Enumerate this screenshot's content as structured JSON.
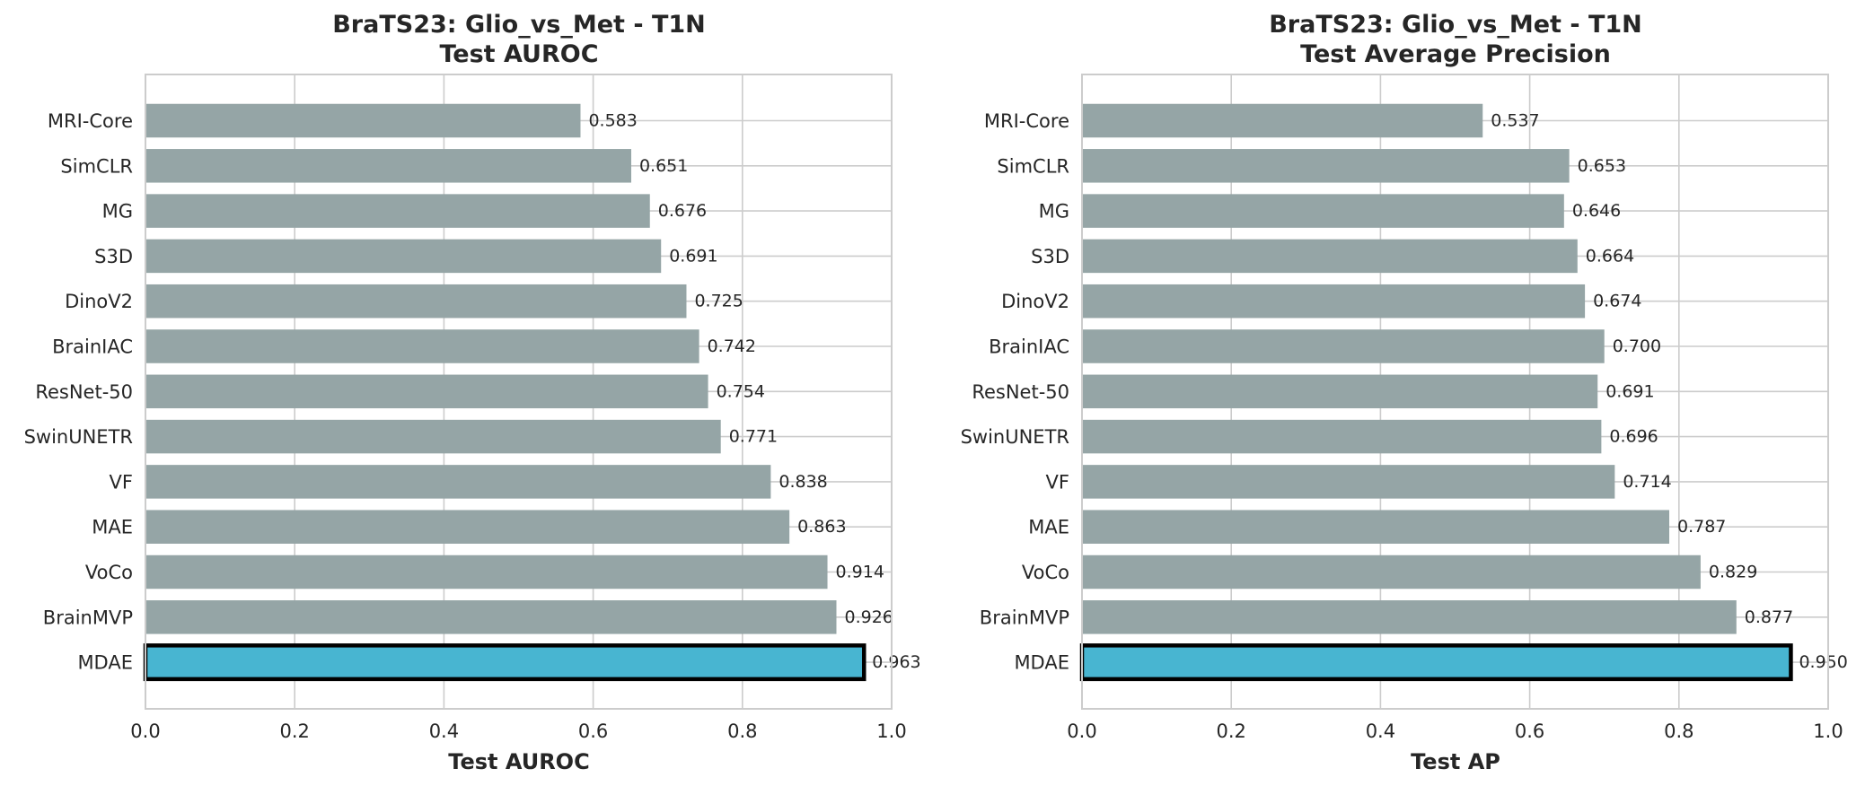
{
  "chart_data": [
    {
      "type": "bar",
      "orientation": "horizontal",
      "title": "BraTS23: Glio_vs_Met - T1N",
      "subtitle": "Test AUROC",
      "xlabel": "Test AUROC",
      "ylabel": "",
      "xlim": [
        0.0,
        1.0
      ],
      "xticks": [
        "0.0",
        "0.2",
        "0.4",
        "0.6",
        "0.8",
        "1.0"
      ],
      "grid": true,
      "categories": [
        "MRI-Core",
        "SimCLR",
        "MG",
        "S3D",
        "DinoV2",
        "BrainIAC",
        "ResNet-50",
        "SwinUNETR",
        "VF",
        "MAE",
        "VoCo",
        "BrainMVP",
        "MDAE"
      ],
      "values": [
        0.583,
        0.651,
        0.676,
        0.691,
        0.725,
        0.742,
        0.754,
        0.771,
        0.838,
        0.863,
        0.914,
        0.926,
        0.963
      ],
      "value_labels": [
        "0.583",
        "0.651",
        "0.676",
        "0.691",
        "0.725",
        "0.742",
        "0.754",
        "0.771",
        "0.838",
        "0.863",
        "0.914",
        "0.926",
        "0.963"
      ],
      "highlight": "MDAE",
      "colors": {
        "bar": "#95a5a6",
        "highlight": "#48b5d1",
        "highlight_edge": "#000000",
        "grid": "#cccccc"
      }
    },
    {
      "type": "bar",
      "orientation": "horizontal",
      "title": "BraTS23: Glio_vs_Met - T1N",
      "subtitle": "Test Average Precision",
      "xlabel": "Test AP",
      "ylabel": "",
      "xlim": [
        0.0,
        1.0
      ],
      "xticks": [
        "0.0",
        "0.2",
        "0.4",
        "0.6",
        "0.8",
        "1.0"
      ],
      "grid": true,
      "categories": [
        "MRI-Core",
        "SimCLR",
        "MG",
        "S3D",
        "DinoV2",
        "BrainIAC",
        "ResNet-50",
        "SwinUNETR",
        "VF",
        "MAE",
        "VoCo",
        "BrainMVP",
        "MDAE"
      ],
      "values": [
        0.537,
        0.653,
        0.646,
        0.664,
        0.674,
        0.7,
        0.691,
        0.696,
        0.714,
        0.787,
        0.829,
        0.877,
        0.95
      ],
      "value_labels": [
        "0.537",
        "0.653",
        "0.646",
        "0.664",
        "0.674",
        "0.700",
        "0.691",
        "0.696",
        "0.714",
        "0.787",
        "0.829",
        "0.877",
        "0.950"
      ],
      "highlight": "MDAE",
      "colors": {
        "bar": "#95a5a6",
        "highlight": "#48b5d1",
        "highlight_edge": "#000000",
        "grid": "#cccccc"
      }
    }
  ]
}
